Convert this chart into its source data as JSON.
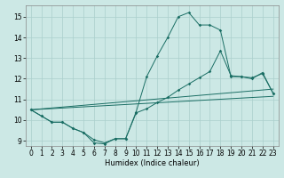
{
  "bg_color": "#cce8e5",
  "grid_color": "#aacfcc",
  "line_color": "#1a6e64",
  "xlabel": "Humidex (Indice chaleur)",
  "xlim": [
    -0.5,
    23.5
  ],
  "ylim": [
    8.75,
    15.55
  ],
  "yticks": [
    9,
    10,
    11,
    12,
    13,
    14,
    15
  ],
  "xticks": [
    0,
    1,
    2,
    3,
    4,
    5,
    6,
    7,
    8,
    9,
    10,
    11,
    12,
    13,
    14,
    15,
    16,
    17,
    18,
    19,
    20,
    21,
    22,
    23
  ],
  "line1_x": [
    0,
    1,
    2,
    3,
    4,
    5,
    6,
    7,
    8,
    9,
    10,
    11,
    12,
    13,
    14,
    15,
    16,
    17,
    18,
    19,
    20,
    21,
    22,
    23
  ],
  "line1_y": [
    10.5,
    10.2,
    9.9,
    9.9,
    9.6,
    9.4,
    8.9,
    8.85,
    9.1,
    9.1,
    10.4,
    12.1,
    13.1,
    14.0,
    15.0,
    15.2,
    14.6,
    14.6,
    14.35,
    12.1,
    12.1,
    12.0,
    12.3,
    11.3
  ],
  "line2_x": [
    0,
    1,
    2,
    3,
    4,
    5,
    6,
    7,
    8,
    9,
    10,
    11,
    12,
    13,
    14,
    15,
    16,
    17,
    18,
    19,
    20,
    21,
    22,
    23
  ],
  "line2_y": [
    10.5,
    10.2,
    9.9,
    9.9,
    9.6,
    9.4,
    9.05,
    8.9,
    9.1,
    9.1,
    10.35,
    10.55,
    10.85,
    11.1,
    11.45,
    11.75,
    12.05,
    12.35,
    13.35,
    12.15,
    12.1,
    12.05,
    12.25,
    11.3
  ],
  "line3_x": [
    0,
    23
  ],
  "line3_y": [
    10.5,
    11.15
  ],
  "line4_x": [
    0,
    23
  ],
  "line4_y": [
    10.5,
    11.5
  ]
}
